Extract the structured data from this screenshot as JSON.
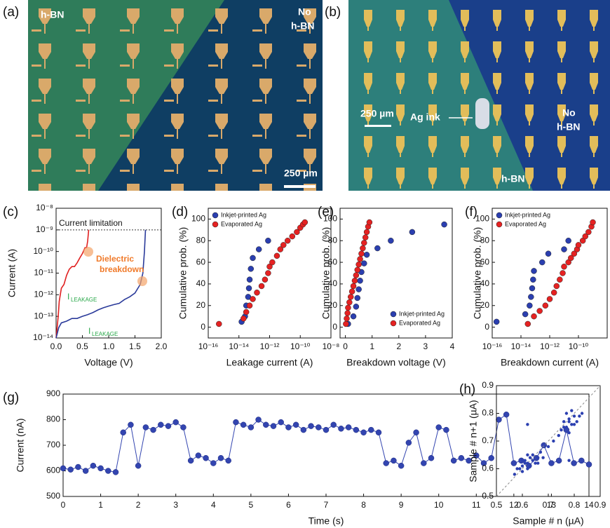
{
  "panels": {
    "a": {
      "label": "(a)",
      "left_text": "h-BN",
      "right_text": [
        "No",
        "h-BN"
      ],
      "scale": "250 µm"
    },
    "b": {
      "label": "(b)",
      "scale": "250 µm",
      "arrow_text": "Ag ink",
      "right_text": [
        "No",
        "h-BN"
      ],
      "bottom_text": "h-BN"
    }
  },
  "chart_data": [
    {
      "type": "line",
      "label": "(c)",
      "xlabel": "Voltage (V)",
      "ylabel": "Current (A)",
      "ylog": true,
      "xlim": [
        0,
        2
      ],
      "xticks": [
        {
          "value": 0,
          "label": "0.0"
        },
        0.5,
        {
          "value": 1,
          "label": "1.0"
        },
        1.5,
        {
          "value": 2,
          "label": "2.0"
        }
      ],
      "ylim": [
        1e-14,
        1e-08
      ],
      "yticks": [
        {
          "value": 1e-14,
          "label": "10⁻¹⁴"
        },
        {
          "value": 1e-13,
          "label": "10⁻¹³"
        },
        {
          "value": 1e-12,
          "label": "10⁻¹²"
        },
        {
          "value": 1e-11,
          "label": "10⁻¹¹"
        },
        {
          "value": 1e-10,
          "label": "10⁻¹⁰"
        },
        {
          "value": 1e-09,
          "label": "10⁻⁹"
        },
        {
          "value": 1e-08,
          "label": "10⁻⁸"
        }
      ],
      "hline": 1e-09,
      "annotations": {
        "limit": "Current limitation",
        "breakdown": [
          "Dielectric",
          "breakdown"
        ],
        "leak": [
          {
            "main": "I",
            "sub": "LEAKAGE"
          },
          {
            "main": "I",
            "sub": "LEAKAGE"
          }
        ]
      },
      "series": [
        {
          "color": "#e02020",
          "x": [
            0,
            0.02,
            0.04,
            0.06,
            0.08,
            0.1,
            0.15,
            0.2,
            0.25,
            0.3,
            0.35,
            0.4,
            0.45,
            0.5,
            0.55,
            0.58,
            0.6,
            0.62
          ],
          "values": [
            1e-14,
            3e-14,
            1e-13,
            5e-13,
            1e-12,
            2e-12,
            3e-12,
            8e-12,
            1.5e-11,
            2e-11,
            2e-11,
            3e-11,
            5e-11,
            8e-11,
            1.5e-10,
            1.5e-10,
            3e-10,
            1e-09
          ]
        },
        {
          "color": "#2a3a9a",
          "x": [
            0,
            0.05,
            0.1,
            0.2,
            0.3,
            0.4,
            0.5,
            0.6,
            0.7,
            0.8,
            0.9,
            1.0,
            1.1,
            1.2,
            1.3,
            1.4,
            1.5,
            1.6,
            1.65,
            1.68,
            1.7
          ],
          "values": [
            1e-14,
            3e-14,
            5e-14,
            6e-14,
            8e-14,
            8e-14,
            1e-13,
            1.2e-13,
            1.5e-13,
            2e-13,
            2.5e-13,
            3e-13,
            3.5e-13,
            4e-13,
            6e-13,
            8e-13,
            1.2e-12,
            3e-12,
            1e-11,
            1e-10,
            1e-09
          ]
        }
      ]
    },
    {
      "type": "scatter",
      "label": "(d)",
      "xlabel": "Leakage current (A)",
      "ylabel": "Cumulative prob. (%)",
      "xlog": true,
      "legend": "upper left",
      "xlim": [
        1e-16,
        1e-08
      ],
      "xticks": [
        {
          "value": 1e-16,
          "label": "10⁻¹⁶"
        },
        {
          "value": 1e-14,
          "label": "10⁻¹⁴"
        },
        {
          "value": 1e-12,
          "label": "10⁻¹²"
        },
        {
          "value": 1e-10,
          "label": "10⁻¹⁰"
        },
        {
          "value": 1e-08,
          "label": "10⁻⁸"
        }
      ],
      "ylim": [
        -10,
        110
      ],
      "yticks": [
        0,
        20,
        40,
        60,
        80,
        100
      ],
      "series": [
        {
          "name": "Inkjet-printed Ag",
          "color": "#2b3fb0",
          "x": [
            1.5e-14,
            2.5e-14,
            3e-14,
            4e-14,
            4.5e-14,
            5e-14,
            6e-14,
            8e-14,
            2e-13,
            8e-13
          ],
          "values": [
            5,
            10,
            20,
            28,
            36,
            44,
            54,
            64,
            72,
            80
          ]
        },
        {
          "name": "Evaporated Ag",
          "color": "#e52222",
          "x": [
            5e-16,
            2e-14,
            3e-14,
            5e-14,
            8e-14,
            1.5e-13,
            3e-13,
            5e-13,
            8e-13,
            1e-12,
            1.5e-12,
            3e-12,
            5e-12,
            8e-12,
            1.5e-11,
            3e-11,
            6e-11,
            1e-10,
            1.5e-10,
            2e-10
          ],
          "values": [
            3,
            8,
            14,
            20,
            26,
            32,
            38,
            44,
            50,
            56,
            60,
            66,
            72,
            76,
            80,
            84,
            88,
            92,
            95,
            97
          ]
        }
      ]
    },
    {
      "type": "scatter",
      "label": "(e)",
      "xlabel": "Breakdown voltage (V)",
      "ylabel": "Cumulative prob. (%)",
      "legend": "lower right",
      "xlim": [
        -0.2,
        4
      ],
      "xticks": [
        0,
        1,
        2,
        3,
        4
      ],
      "ylim": [
        -10,
        110
      ],
      "yticks": [
        0,
        20,
        40,
        60,
        80,
        100
      ],
      "series": [
        {
          "name": "Inkjet-printed Ag",
          "color": "#2b3fb0",
          "x": [
            0.1,
            0.3,
            0.4,
            0.45,
            0.5,
            0.55,
            0.6,
            0.7,
            0.8,
            1.2,
            1.7,
            2.5,
            3.7
          ],
          "values": [
            3,
            10,
            19,
            27,
            35,
            43,
            51,
            59,
            67,
            73,
            80,
            88,
            95
          ]
        },
        {
          "name": "Evaporated Ag",
          "color": "#e52222",
          "x": [
            0.02,
            0.05,
            0.08,
            0.1,
            0.15,
            0.2,
            0.25,
            0.3,
            0.35,
            0.4,
            0.45,
            0.5,
            0.55,
            0.6,
            0.65,
            0.7,
            0.75,
            0.8,
            0.85,
            0.9
          ],
          "values": [
            3,
            8,
            13,
            18,
            23,
            28,
            33,
            38,
            43,
            48,
            53,
            58,
            63,
            68,
            73,
            78,
            83,
            88,
            93,
            97
          ]
        }
      ]
    },
    {
      "type": "scatter",
      "label": "(f)",
      "xlabel": "Breakdown current (A)",
      "ylabel": "Cumulative prob. (%)",
      "xlog": true,
      "legend": "upper left",
      "xlim": [
        1e-16,
        1e-08
      ],
      "xticks": [
        {
          "value": 1e-16,
          "label": "10⁻¹⁶"
        },
        {
          "value": 1e-14,
          "label": "10⁻¹⁴"
        },
        {
          "value": 1e-12,
          "label": "10⁻¹²"
        },
        {
          "value": 1e-10,
          "label": "10⁻¹⁰"
        }
      ],
      "ylim": [
        -10,
        110
      ],
      "yticks": [
        0,
        20,
        40,
        60,
        80,
        100
      ],
      "series": [
        {
          "name": "Inkjet-printed Ag",
          "color": "#2b3fb0",
          "x": [
            2e-16,
            2e-14,
            4e-14,
            5e-14,
            6e-14,
            7e-14,
            8e-14,
            3e-13,
            8e-13,
            1e-11,
            2e-11
          ],
          "values": [
            5,
            12,
            20,
            28,
            36,
            44,
            52,
            60,
            68,
            72,
            80
          ]
        },
        {
          "name": "Evaporated Ag",
          "color": "#e52222",
          "x": [
            3e-14,
            8e-14,
            2e-13,
            5e-13,
            1e-12,
            2e-12,
            3e-12,
            5e-12,
            8e-12,
            1e-11,
            2e-11,
            3e-11,
            5e-11,
            8e-11,
            1e-10,
            2e-10,
            3e-10,
            5e-10,
            8e-10,
            1e-09
          ],
          "values": [
            3,
            10,
            15,
            20,
            26,
            32,
            38,
            44,
            50,
            56,
            60,
            64,
            68,
            72,
            76,
            80,
            84,
            88,
            93,
            97
          ]
        }
      ]
    },
    {
      "type": "line",
      "label": "(g)",
      "xlabel": "Time (s)",
      "ylabel": "Current (nA)",
      "markers": true,
      "xlim": [
        0,
        14
      ],
      "xticks": [
        0,
        1,
        2,
        3,
        4,
        5,
        6,
        7,
        8,
        9,
        10,
        11,
        12,
        13,
        14
      ],
      "ylim": [
        500,
        900
      ],
      "yticks": [
        500,
        600,
        700,
        800,
        900
      ],
      "series": [
        {
          "color": "#3345b0",
          "x": [
            0,
            0.2,
            0.4,
            0.6,
            0.8,
            1.0,
            1.2,
            1.4,
            1.6,
            1.8,
            2.0,
            2.2,
            2.4,
            2.6,
            2.8,
            3.0,
            3.2,
            3.4,
            3.6,
            3.8,
            4.0,
            4.2,
            4.4,
            4.6,
            4.8,
            5.0,
            5.2,
            5.4,
            5.6,
            5.8,
            6.0,
            6.2,
            6.4,
            6.6,
            6.8,
            7.0,
            7.2,
            7.4,
            7.6,
            7.8,
            8.0,
            8.2,
            8.4,
            8.6,
            8.8,
            9.0,
            9.2,
            9.4,
            9.6,
            9.8,
            10.0,
            10.2,
            10.4,
            10.6,
            10.8,
            11.0,
            11.2,
            11.4,
            11.6,
            11.8,
            12.0,
            12.2,
            12.4,
            12.6,
            12.8,
            13.0,
            13.2,
            13.4,
            13.6,
            13.8,
            14.0
          ],
          "values": [
            610,
            605,
            615,
            600,
            620,
            610,
            600,
            595,
            750,
            780,
            620,
            770,
            760,
            780,
            775,
            790,
            770,
            640,
            660,
            650,
            630,
            650,
            640,
            790,
            780,
            770,
            800,
            780,
            775,
            790,
            770,
            780,
            760,
            775,
            770,
            760,
            780,
            765,
            770,
            760,
            750,
            760,
            750,
            630,
            640,
            620,
            710,
            750,
            630,
            650,
            770,
            760,
            640,
            650,
            640,
            660,
            630,
            650,
            800,
            820,
            630,
            640,
            620,
            650,
            700,
            630,
            640,
            760,
            630,
            640,
            625
          ]
        }
      ]
    },
    {
      "type": "scatter",
      "label": "(h)",
      "xlabel": "Sample # n (µA)",
      "ylabel": "Sample # n+1 (µA)",
      "xlim": [
        0.5,
        0.9
      ],
      "xticks": [
        0.5,
        0.6,
        0.7,
        0.8,
        0.9
      ],
      "ylim": [
        0.5,
        0.9
      ],
      "yticks": [
        0.5,
        0.6,
        0.7,
        0.8,
        0.9
      ],
      "series": [
        {
          "color": "#2b3fb0",
          "x": [
            0.58,
            0.6,
            0.61,
            0.62,
            0.63,
            0.64,
            0.6,
            0.62,
            0.65,
            0.66,
            0.59,
            0.63,
            0.61,
            0.67,
            0.64,
            0.62,
            0.68,
            0.6,
            0.57,
            0.66,
            0.75,
            0.76,
            0.77,
            0.78,
            0.79,
            0.8,
            0.77,
            0.78,
            0.81,
            0.82,
            0.76,
            0.79,
            0.8,
            0.74,
            0.83,
            0.78,
            0.62,
            0.78,
            0.7,
            0.72
          ],
          "values": [
            0.6,
            0.61,
            0.63,
            0.62,
            0.64,
            0.63,
            0.59,
            0.65,
            0.62,
            0.64,
            0.6,
            0.61,
            0.62,
            0.66,
            0.65,
            0.6,
            0.64,
            0.63,
            0.58,
            0.62,
            0.74,
            0.77,
            0.75,
            0.78,
            0.76,
            0.79,
            0.8,
            0.73,
            0.77,
            0.79,
            0.75,
            0.81,
            0.76,
            0.72,
            0.8,
            0.77,
            0.76,
            0.63,
            0.68,
            0.7
          ]
        }
      ]
    }
  ]
}
